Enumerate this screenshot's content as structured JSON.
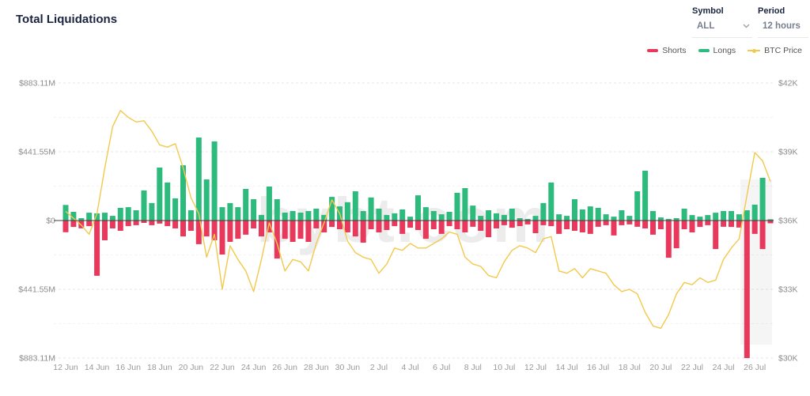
{
  "header": {
    "title": "Total Liquidations",
    "symbol_control": {
      "label": "Symbol",
      "value": "ALL"
    },
    "period_control": {
      "label": "Period",
      "value": "12 hours"
    }
  },
  "legend": [
    {
      "label": "Shorts",
      "color": "#E8395C",
      "type": "bar"
    },
    {
      "label": "Longs",
      "color": "#2DBA7D",
      "type": "bar"
    },
    {
      "label": "BTC Price",
      "color": "#F2C94C",
      "type": "line"
    }
  ],
  "watermark": "bybt.com",
  "colors": {
    "shorts": "#E8395C",
    "longs": "#2DBA7D",
    "btc_price": "#F2C94C",
    "grid_major": "#e4e4e4",
    "grid_minor": "#f2f2f2",
    "zero_line": "#3f3f3f",
    "axis_text": "#8c8c8c",
    "title_text": "#1a2440",
    "watermark_text": "#ececec"
  },
  "chart_data": {
    "type": "bar",
    "subtype": "mixed-bar-line-dual-axis",
    "slots_per_day": 2,
    "slot_duration": "12 hours",
    "x_tick_labels": [
      "12 Jun",
      "14 Jun",
      "16 Jun",
      "18 Jun",
      "20 Jun",
      "22 Jun",
      "24 Jun",
      "26 Jun",
      "28 Jun",
      "30 Jun",
      "2 Jul",
      "4 Jul",
      "6 Jul",
      "8 Jul",
      "10 Jul",
      "12 Jul",
      "14 Jul",
      "16 Jul",
      "18 Jul",
      "20 Jul",
      "22 Jul",
      "24 Jul",
      "26 Jul"
    ],
    "x_ticks_every_n_slots": 4,
    "left_axis": {
      "tick_labels": [
        "$883.11M",
        "$441.55M",
        "$0",
        "$441.55M",
        "$883.11M"
      ],
      "max_abs_millions": 883.11,
      "unit": "USD millions"
    },
    "right_axis": {
      "tick_labels": [
        "$42K",
        "$39K",
        "$36K",
        "$33K",
        "$30K"
      ],
      "min_thousands": 30,
      "max_thousands": 42,
      "unit": "USD thousands"
    },
    "series": [
      {
        "name": "Longs",
        "axis": "left",
        "direction": "up",
        "unit": "USD millions",
        "values": [
          100,
          56,
          15,
          50,
          46,
          50,
          30,
          81,
          86,
          66,
          193,
          112,
          340,
          244,
          142,
          355,
          66,
          533,
          264,
          508,
          86,
          112,
          86,
          203,
          137,
          36,
          218,
          137,
          51,
          61,
          51,
          61,
          76,
          36,
          152,
          91,
          118,
          188,
          61,
          148,
          76,
          36,
          46,
          71,
          25,
          162,
          86,
          61,
          40,
          56,
          178,
          208,
          96,
          30,
          66,
          46,
          36,
          76,
          15,
          10,
          30,
          112,
          244,
          40,
          30,
          137,
          71,
          91,
          81,
          40,
          25,
          66,
          30,
          188,
          320,
          61,
          20,
          10,
          15,
          76,
          35,
          25,
          35,
          50,
          61,
          61,
          40,
          66,
          102,
          274,
          8
        ]
      },
      {
        "name": "Shorts",
        "axis": "left",
        "direction": "down",
        "unit": "USD millions",
        "values": [
          75,
          41,
          50,
          36,
          355,
          127,
          51,
          66,
          36,
          30,
          15,
          30,
          20,
          36,
          51,
          102,
          66,
          152,
          102,
          127,
          218,
          137,
          117,
          91,
          51,
          102,
          76,
          244,
          117,
          137,
          117,
          137,
          51,
          76,
          41,
          56,
          76,
          102,
          142,
          56,
          76,
          61,
          36,
          86,
          46,
          61,
          117,
          56,
          86,
          36,
          56,
          76,
          40,
          66,
          107,
          51,
          30,
          46,
          36,
          25,
          81,
          30,
          36,
          86,
          56,
          66,
          76,
          86,
          40,
          30,
          96,
          30,
          25,
          40,
          51,
          91,
          56,
          239,
          178,
          56,
          76,
          41,
          30,
          183,
          40,
          41,
          45,
          883.11,
          86,
          183,
          18
        ]
      },
      {
        "name": "BTC Price",
        "axis": "right",
        "type": "line",
        "unit": "USD thousands",
        "values": [
          36.4,
          36.1,
          35.8,
          35.4,
          36.3,
          38.3,
          40.1,
          40.8,
          40.5,
          40.3,
          40.35,
          39.9,
          39.3,
          39.2,
          39.35,
          38.3,
          37.0,
          36.3,
          34.4,
          35.4,
          33.0,
          34.9,
          34.3,
          33.8,
          32.9,
          34.3,
          35.9,
          35.0,
          33.8,
          34.3,
          34.2,
          33.8,
          35.0,
          35.9,
          36.9,
          36.3,
          35.1,
          34.6,
          34.4,
          34.3,
          33.7,
          34.1,
          34.8,
          34.7,
          35.0,
          34.8,
          34.8,
          35.0,
          35.2,
          35.5,
          35.4,
          34.4,
          34.1,
          34.0,
          33.6,
          33.5,
          34.2,
          34.7,
          34.9,
          34.8,
          34.6,
          35.2,
          35.3,
          33.8,
          33.7,
          33.9,
          33.5,
          33.9,
          33.8,
          33.7,
          33.2,
          32.9,
          33.0,
          32.8,
          32.0,
          31.4,
          31.3,
          31.9,
          32.8,
          33.3,
          33.2,
          33.5,
          33.3,
          33.4,
          34.3,
          34.8,
          35.2,
          37.1,
          38.97,
          38.6,
          37.7
        ]
      }
    ]
  }
}
